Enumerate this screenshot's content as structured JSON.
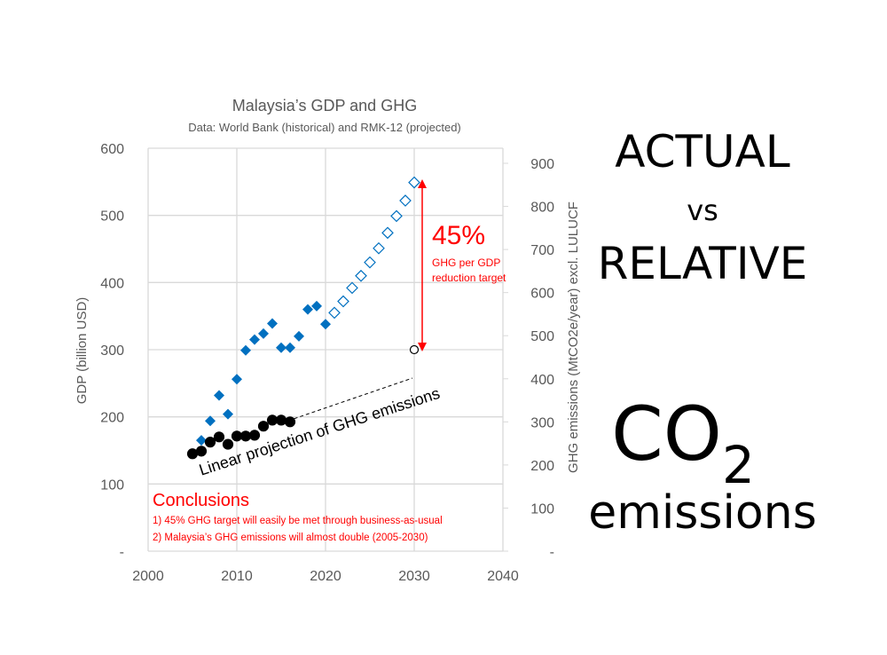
{
  "slide": {
    "line1": "ACTUAL",
    "line2": "vs",
    "line3": "RELATIVE",
    "co2_main": "CO",
    "co2_sub": "2",
    "emissions": "emissions"
  },
  "chart_data": {
    "type": "scatter",
    "title": "Malaysia’s GDP and GHG",
    "subtitle": "Data: World Bank (historical) and RMK-12 (projected)",
    "ylabel": "GDP (billion USD)",
    "y2label": "GHG emissions (MtCO2e/year) excl. LULUCF",
    "xlim": [
      2000,
      2040
    ],
    "ylim": [
      0,
      600
    ],
    "y2lim": [
      0,
      900
    ],
    "x_ticks": [
      "2000",
      "2010",
      "2020",
      "2030",
      "2040"
    ],
    "y_ticks": [
      "-",
      "100",
      "200",
      "300",
      "400",
      "500",
      "600"
    ],
    "y2_ticks": [
      "-",
      "100",
      "200",
      "300",
      "400",
      "500",
      "600",
      "700",
      "800",
      "900"
    ],
    "grid": true,
    "colors": {
      "gdp": "#0070C0",
      "ghg": "#000000",
      "annotation": "#FF0000"
    },
    "series": [
      {
        "axis": "left",
        "marker": "diamond-filled",
        "x": [
          2006,
          2007,
          2008,
          2009,
          2010,
          2011,
          2012,
          2013,
          2014,
          2015,
          2016,
          2017,
          2018,
          2019,
          2020
        ],
        "y": [
          165,
          194,
          232,
          204,
          256,
          299,
          315,
          324,
          339,
          303,
          303,
          320,
          360,
          365,
          338
        ]
      },
      {
        "axis": "left",
        "marker": "diamond-hollow",
        "x": [
          2021,
          2022,
          2023,
          2024,
          2025,
          2026,
          2027,
          2028,
          2029,
          2030
        ],
        "y": [
          355,
          372,
          392,
          410,
          430,
          451,
          474,
          499,
          522,
          549
        ]
      },
      {
        "axis": "right",
        "marker": "circle-filled",
        "x": [
          2005,
          2006,
          2007,
          2008,
          2009,
          2010,
          2011,
          2012,
          2013,
          2014,
          2015,
          2016
        ],
        "y": [
          226,
          232,
          253,
          265,
          248,
          267,
          267,
          269,
          290,
          304,
          304,
          300
        ]
      },
      {
        "axis": "left",
        "marker": "circle-hollow",
        "x": [
          2030
        ],
        "y": [
          300
        ]
      }
    ],
    "annotations": {
      "target_pct": "45%",
      "target_line1": "GHG per GDP",
      "target_line2": "reduction target",
      "projection_label": "Linear projection of GHG emissions",
      "conclusions_title": "Conclusions",
      "conclusion_1": "1) 45% GHG target will easily be met through business-as-usual",
      "conclusion_2": "2) Malaysia’s GHG emissions will almost double (2005-2030)"
    }
  }
}
